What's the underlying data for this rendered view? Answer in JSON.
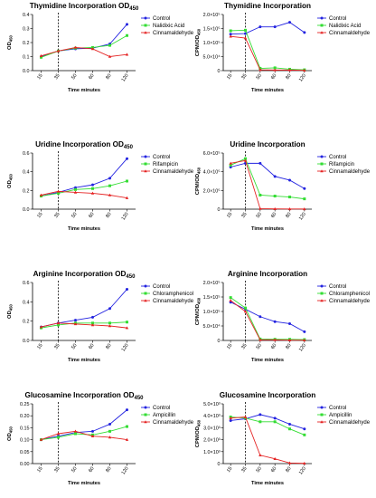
{
  "colors": {
    "control": "#2323e0",
    "treated": "#33dd33",
    "cinnamaldehyde": "#e52222",
    "axis": "#000000"
  },
  "chart_data": [
    {
      "type": "line",
      "title": "Thymidine Incorporation OD",
      "title_sub": "450",
      "ylabel": "OD",
      "ylabel_sub": "450",
      "xlabel": "Time minutes",
      "x": [
        "15",
        "35",
        "50",
        "60",
        "80",
        "120"
      ],
      "ylim": [
        0,
        0.4
      ],
      "yticks": [
        "0.0",
        "0.1",
        "0.2",
        "0.3",
        "0.4"
      ],
      "vline_at": "35",
      "legend": "right",
      "series": [
        {
          "name": "Control",
          "color_key": "control",
          "marker": "circle",
          "values": [
            0.1,
            0.14,
            0.155,
            0.16,
            0.19,
            0.33
          ]
        },
        {
          "name": "Nalidixic Acid",
          "color_key": "treated",
          "marker": "square",
          "values": [
            0.095,
            0.14,
            0.16,
            0.165,
            0.18,
            0.25
          ]
        },
        {
          "name": "Cinnamaldehyde",
          "color_key": "cinnamaldehyde",
          "marker": "triangle",
          "values": [
            0.105,
            0.14,
            0.165,
            0.155,
            0.1,
            0.115
          ]
        }
      ]
    },
    {
      "type": "line",
      "title": "Thymidine Incorporation",
      "ylabel": "CPM/OD",
      "ylabel_sub": "450",
      "xlabel": "Time minutes",
      "x": [
        "15",
        "35",
        "50",
        "60",
        "80",
        "120"
      ],
      "ylim": [
        0,
        2.0
      ],
      "yticks": [
        "0",
        "5.0×10⁴",
        "1.0×10⁵",
        "1.5×10⁵",
        "2.0×10⁵"
      ],
      "vline_at": "35",
      "legend": "right",
      "series": [
        {
          "name": "Control",
          "color_key": "control",
          "marker": "circle",
          "values": [
            1.3,
            1.32,
            1.56,
            1.56,
            1.72,
            1.36
          ]
        },
        {
          "name": "Nalidixic Acid",
          "color_key": "treated",
          "marker": "square",
          "values": [
            1.42,
            1.44,
            0.08,
            0.1,
            0.05,
            0.03
          ]
        },
        {
          "name": "Cinnamaldehyde",
          "color_key": "cinnamaldehyde",
          "marker": "triangle",
          "values": [
            1.22,
            1.16,
            0.03,
            0.02,
            0.02,
            0.01
          ]
        }
      ]
    },
    {
      "type": "line",
      "title": "Uridine Incorporation OD",
      "title_sub": "450",
      "ylabel": "OD",
      "ylabel_sub": "450",
      "xlabel": "Time minutes",
      "x": [
        "15",
        "35",
        "50",
        "60",
        "80",
        "120"
      ],
      "ylim": [
        0,
        0.6
      ],
      "yticks": [
        "0.0",
        "0.2",
        "0.4",
        "0.6"
      ],
      "vline_at": "35",
      "legend": "right",
      "series": [
        {
          "name": "Control",
          "color_key": "control",
          "marker": "circle",
          "values": [
            0.14,
            0.18,
            0.23,
            0.26,
            0.33,
            0.54
          ]
        },
        {
          "name": "Rifampicin",
          "color_key": "treated",
          "marker": "square",
          "values": [
            0.14,
            0.17,
            0.21,
            0.22,
            0.25,
            0.3
          ]
        },
        {
          "name": "Cinnamaldehyde",
          "color_key": "cinnamaldehyde",
          "marker": "triangle",
          "values": [
            0.15,
            0.19,
            0.18,
            0.17,
            0.15,
            0.12
          ]
        }
      ]
    },
    {
      "type": "line",
      "title": "Uridine Incorporation",
      "ylabel": "CPM/OD",
      "ylabel_sub": "450",
      "xlabel": "Time minutes",
      "x": [
        "15",
        "35",
        "50",
        "60",
        "80",
        "120"
      ],
      "ylim": [
        0,
        6.0
      ],
      "yticks": [
        "0",
        "2.0×10⁵",
        "4.0×10⁵",
        "6.0×10⁵"
      ],
      "vline_at": "35",
      "legend": "right",
      "series": [
        {
          "name": "Control",
          "color_key": "control",
          "marker": "circle",
          "values": [
            4.5,
            4.9,
            4.9,
            3.5,
            3.1,
            2.2
          ]
        },
        {
          "name": "Rifampicin",
          "color_key": "treated",
          "marker": "square",
          "values": [
            4.7,
            5.4,
            1.5,
            1.4,
            1.3,
            1.1
          ]
        },
        {
          "name": "Cinnamaldehyde",
          "color_key": "cinnamaldehyde",
          "marker": "triangle",
          "values": [
            4.9,
            5.2,
            0.05,
            0.03,
            0.02,
            0.02
          ]
        }
      ]
    },
    {
      "type": "line",
      "title": "Arginine Incorporation OD",
      "title_sub": "450",
      "ylabel": "OD",
      "ylabel_sub": "450",
      "xlabel": "Time minutes",
      "x": [
        "15",
        "35",
        "50",
        "60",
        "80",
        "120"
      ],
      "ylim": [
        0,
        0.6
      ],
      "yticks": [
        "0.0",
        "0.2",
        "0.4",
        "0.6"
      ],
      "vline_at": "35",
      "legend": "right",
      "series": [
        {
          "name": "Control",
          "color_key": "control",
          "marker": "circle",
          "values": [
            0.14,
            0.18,
            0.21,
            0.24,
            0.33,
            0.53
          ]
        },
        {
          "name": "Chloramphenicol",
          "color_key": "treated",
          "marker": "square",
          "values": [
            0.13,
            0.16,
            0.18,
            0.18,
            0.18,
            0.19
          ]
        },
        {
          "name": "Cinnamaldehyde",
          "color_key": "cinnamaldehyde",
          "marker": "triangle",
          "values": [
            0.14,
            0.18,
            0.17,
            0.16,
            0.15,
            0.13
          ]
        }
      ]
    },
    {
      "type": "line",
      "title": "Arginine Incorporation",
      "ylabel": "CPM/OD",
      "ylabel_sub": "450",
      "xlabel": "Time minutes",
      "x": [
        "15",
        "35",
        "50",
        "60",
        "80",
        "120"
      ],
      "ylim": [
        0,
        2.0
      ],
      "yticks": [
        "0",
        "5.0×10⁴",
        "1.0×10⁵",
        "1.5×10⁵",
        "2.0×10⁵"
      ],
      "vline_at": "35",
      "legend": "right",
      "series": [
        {
          "name": "Control",
          "color_key": "control",
          "marker": "circle",
          "values": [
            1.32,
            1.08,
            0.82,
            0.65,
            0.58,
            0.3
          ]
        },
        {
          "name": "Chloramphenicol",
          "color_key": "treated",
          "marker": "square",
          "values": [
            1.48,
            1.12,
            0.05,
            0.04,
            0.04,
            0.03
          ]
        },
        {
          "name": "Cinnamaldehyde",
          "color_key": "cinnamaldehyde",
          "marker": "triangle",
          "values": [
            1.38,
            1.0,
            0.02,
            0.02,
            0.01,
            0.01
          ]
        }
      ]
    },
    {
      "type": "line",
      "title": "Glucosamine Incorporation OD",
      "title_sub": "450",
      "ylabel": "OD",
      "ylabel_sub": "450",
      "xlabel": "Time minutes",
      "x": [
        "15",
        "35",
        "50",
        "60",
        "80",
        "120"
      ],
      "ylim": [
        0,
        0.25
      ],
      "yticks": [
        "0.00",
        "0.05",
        "0.10",
        "0.15",
        "0.20",
        "0.25"
      ],
      "vline_at": "35",
      "legend": "right",
      "series": [
        {
          "name": "Control",
          "color_key": "control",
          "marker": "circle",
          "values": [
            0.1,
            0.115,
            0.13,
            0.135,
            0.165,
            0.225
          ]
        },
        {
          "name": "Ampicillin",
          "color_key": "treated",
          "marker": "square",
          "values": [
            0.1,
            0.11,
            0.125,
            0.12,
            0.135,
            0.155
          ]
        },
        {
          "name": "Cinnamaldehyde",
          "color_key": "cinnamaldehyde",
          "marker": "triangle",
          "values": [
            0.1,
            0.125,
            0.135,
            0.115,
            0.11,
            0.1
          ]
        }
      ]
    },
    {
      "type": "line",
      "title": "Glucosamine Incorporation",
      "ylabel": "CPM/OD",
      "ylabel_sub": "450",
      "xlabel": "Time minutes",
      "x": [
        "15",
        "35",
        "50",
        "60",
        "80",
        "120"
      ],
      "ylim": [
        0,
        5.0
      ],
      "yticks": [
        "0",
        "1.0×10³",
        "2.0×10³",
        "3.0×10³",
        "4.0×10³",
        "5.0×10³"
      ],
      "vline_at": "35",
      "legend": "right",
      "series": [
        {
          "name": "Control",
          "color_key": "control",
          "marker": "circle",
          "values": [
            3.6,
            3.75,
            4.1,
            3.8,
            3.3,
            2.9
          ]
        },
        {
          "name": "Ampicillin",
          "color_key": "treated",
          "marker": "square",
          "values": [
            3.9,
            3.8,
            3.5,
            3.5,
            2.9,
            2.4
          ]
        },
        {
          "name": "Cinnamaldehyde",
          "color_key": "cinnamaldehyde",
          "marker": "triangle",
          "values": [
            3.8,
            3.9,
            0.7,
            0.4,
            0.05,
            0.02
          ]
        }
      ]
    }
  ]
}
